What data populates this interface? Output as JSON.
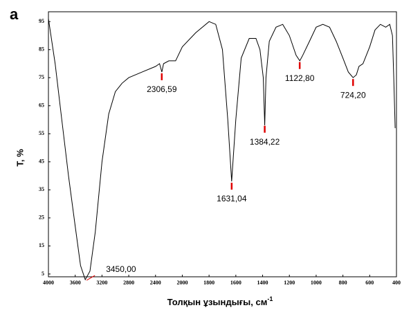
{
  "chart_data": {
    "type": "line",
    "panel_label": "а",
    "x_label": "Толқын ұзындығы, см",
    "x_label_sup": "-1",
    "y_label": "T, %",
    "color": "#000000",
    "marker_color": "#e00000",
    "x": [
      4000,
      3900,
      3800,
      3700,
      3600,
      3520,
      3450,
      3380,
      3300,
      3200,
      3100,
      3000,
      2900,
      2800,
      2600,
      2400,
      2340,
      2306,
      2280,
      2200,
      2100,
      2000,
      1900,
      1800,
      1750,
      1700,
      1660,
      1631,
      1600,
      1560,
      1500,
      1450,
      1420,
      1395,
      1384,
      1375,
      1350,
      1300,
      1250,
      1200,
      1150,
      1122,
      1100,
      1050,
      1000,
      950,
      900,
      850,
      800,
      760,
      724,
      700,
      680,
      650,
      600,
      560,
      520,
      480,
      450,
      430,
      420,
      410
    ],
    "values": [
      96,
      80,
      60,
      40,
      22,
      8,
      3,
      6,
      20,
      45,
      62,
      70,
      73,
      75,
      77,
      79,
      80,
      77,
      80,
      81,
      81,
      86,
      91,
      95,
      94,
      85,
      60,
      38,
      60,
      82,
      89,
      89,
      85,
      75,
      58,
      75,
      88,
      93,
      94,
      90,
      83,
      81,
      83,
      88,
      93,
      94,
      93,
      88,
      82,
      77,
      75,
      76,
      79,
      80,
      86,
      92,
      94,
      93,
      94,
      90,
      75,
      57
    ],
    "xlim": [
      4000,
      400
    ],
    "ylim": [
      4,
      98.5
    ],
    "xticks": [
      4000,
      3600,
      3200,
      2800,
      2400,
      2000,
      1800,
      1600,
      1400,
      1200,
      1000,
      800,
      600,
      400
    ],
    "yticks": [
      5,
      15,
      25,
      35,
      45,
      55,
      65,
      75,
      85,
      95
    ],
    "annotations": [
      {
        "value": 3450,
        "label": "3450,00"
      },
      {
        "value": 2306.59,
        "label": "2306,59"
      },
      {
        "value": 1631.04,
        "label": "1631,04"
      },
      {
        "value": 1384.22,
        "label": "1384,22"
      },
      {
        "value": 1122.8,
        "label": "1122,80"
      },
      {
        "value": 724.2,
        "label": "724,20"
      }
    ]
  }
}
